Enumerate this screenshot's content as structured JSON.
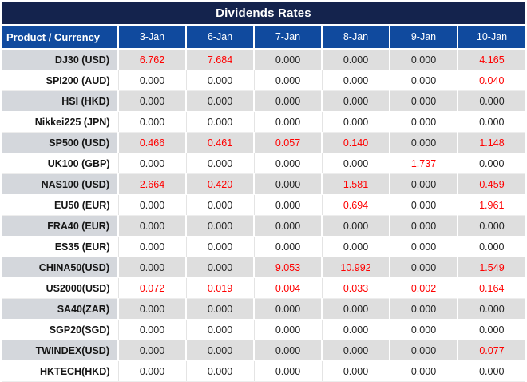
{
  "title": "Dividends Rates",
  "colors": {
    "title_bg": "#14234D",
    "header_bg": "#104A9E",
    "row_shaded_bg": "#DEDEDE",
    "row_shaded_product_bg": "#D4D7DC",
    "red": "#FF0000",
    "text": "#232323"
  },
  "table": {
    "product_header": "Product / Currency",
    "date_headers": [
      "3-Jan",
      "6-Jan",
      "7-Jan",
      "8-Jan",
      "9-Jan",
      "10-Jan"
    ],
    "rows": [
      {
        "product": "DJ30 (USD)",
        "values": [
          "6.762",
          "7.684",
          "0.000",
          "0.000",
          "0.000",
          "4.165"
        ],
        "red": [
          true,
          true,
          false,
          false,
          false,
          true
        ]
      },
      {
        "product": "SPI200 (AUD)",
        "values": [
          "0.000",
          "0.000",
          "0.000",
          "0.000",
          "0.000",
          "0.040"
        ],
        "red": [
          false,
          false,
          false,
          false,
          false,
          true
        ]
      },
      {
        "product": "HSI (HKD)",
        "values": [
          "0.000",
          "0.000",
          "0.000",
          "0.000",
          "0.000",
          "0.000"
        ],
        "red": [
          false,
          false,
          false,
          false,
          false,
          false
        ]
      },
      {
        "product": "Nikkei225 (JPN)",
        "values": [
          "0.000",
          "0.000",
          "0.000",
          "0.000",
          "0.000",
          "0.000"
        ],
        "red": [
          false,
          false,
          false,
          false,
          false,
          false
        ]
      },
      {
        "product": "SP500 (USD)",
        "values": [
          "0.466",
          "0.461",
          "0.057",
          "0.140",
          "0.000",
          "1.148"
        ],
        "red": [
          true,
          true,
          true,
          true,
          false,
          true
        ]
      },
      {
        "product": "UK100 (GBP)",
        "values": [
          "0.000",
          "0.000",
          "0.000",
          "0.000",
          "1.737",
          "0.000"
        ],
        "red": [
          false,
          false,
          false,
          false,
          true,
          false
        ]
      },
      {
        "product": "NAS100 (USD)",
        "values": [
          "2.664",
          "0.420",
          "0.000",
          "1.581",
          "0.000",
          "0.459"
        ],
        "red": [
          true,
          true,
          false,
          true,
          false,
          true
        ]
      },
      {
        "product": "EU50 (EUR)",
        "values": [
          "0.000",
          "0.000",
          "0.000",
          "0.694",
          "0.000",
          "1.961"
        ],
        "red": [
          false,
          false,
          false,
          true,
          false,
          true
        ]
      },
      {
        "product": "FRA40 (EUR)",
        "values": [
          "0.000",
          "0.000",
          "0.000",
          "0.000",
          "0.000",
          "0.000"
        ],
        "red": [
          false,
          false,
          false,
          false,
          false,
          false
        ]
      },
      {
        "product": "ES35 (EUR)",
        "values": [
          "0.000",
          "0.000",
          "0.000",
          "0.000",
          "0.000",
          "0.000"
        ],
        "red": [
          false,
          false,
          false,
          false,
          false,
          false
        ]
      },
      {
        "product": "CHINA50(USD)",
        "values": [
          "0.000",
          "0.000",
          "9.053",
          "10.992",
          "0.000",
          "1.549"
        ],
        "red": [
          false,
          false,
          true,
          true,
          false,
          true
        ]
      },
      {
        "product": "US2000(USD)",
        "values": [
          "0.072",
          "0.019",
          "0.004",
          "0.033",
          "0.002",
          "0.164"
        ],
        "red": [
          true,
          true,
          true,
          true,
          true,
          true
        ]
      },
      {
        "product": "SA40(ZAR)",
        "values": [
          "0.000",
          "0.000",
          "0.000",
          "0.000",
          "0.000",
          "0.000"
        ],
        "red": [
          false,
          false,
          false,
          false,
          false,
          false
        ]
      },
      {
        "product": "SGP20(SGD)",
        "values": [
          "0.000",
          "0.000",
          "0.000",
          "0.000",
          "0.000",
          "0.000"
        ],
        "red": [
          false,
          false,
          false,
          false,
          false,
          false
        ]
      },
      {
        "product": "TWINDEX(USD)",
        "values": [
          "0.000",
          "0.000",
          "0.000",
          "0.000",
          "0.000",
          "0.077"
        ],
        "red": [
          false,
          false,
          false,
          false,
          false,
          true
        ]
      },
      {
        "product": "HKTECH(HKD)",
        "values": [
          "0.000",
          "0.000",
          "0.000",
          "0.000",
          "0.000",
          "0.000"
        ],
        "red": [
          false,
          false,
          false,
          false,
          false,
          false
        ]
      }
    ]
  }
}
